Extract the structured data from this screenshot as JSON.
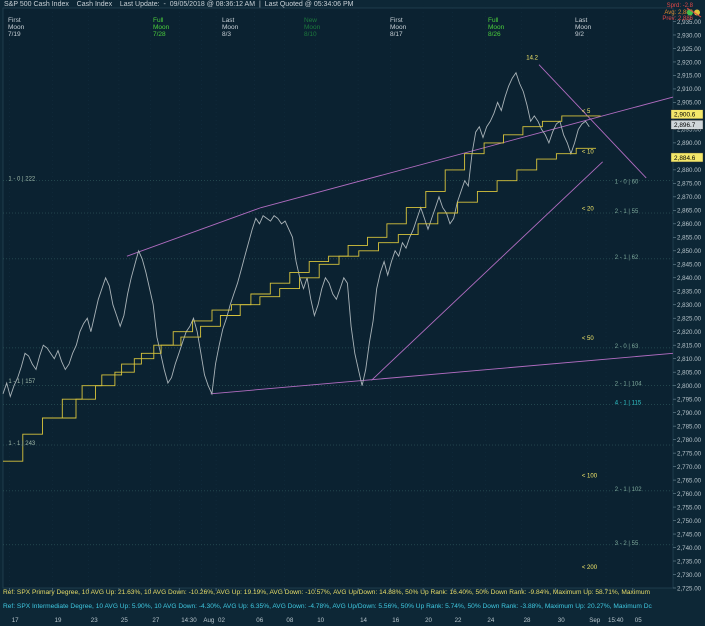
{
  "header": {
    "title": "S&P 500 Cash Index",
    "subtitle": "Cash Index",
    "last_update_label": "Last Update:",
    "last_update": "09/05/2018 @ 08:36:12 AM",
    "last_quoted_label": "Last Quoted @ 05:34:06 PM"
  },
  "moon_phases": [
    {
      "phase": "First",
      "moon": "Moon",
      "date": "7/19",
      "color": "#c8d0d6"
    },
    {
      "phase": "Full",
      "moon": "Moon",
      "date": "7/28",
      "color": "#4ccf3c"
    },
    {
      "phase": "Last",
      "moon": "Moon",
      "date": "8/3",
      "color": "#c8d0d6"
    },
    {
      "phase": "New",
      "moon": "Moon",
      "date": "8/10",
      "color": "#1c7a3c"
    },
    {
      "phase": "First",
      "moon": "Moon",
      "date": "8/17",
      "color": "#c8d0d6"
    },
    {
      "phase": "Full",
      "moon": "Moon",
      "date": "8/26",
      "color": "#4ccf3c"
    },
    {
      "phase": "Last",
      "moon": "Moon",
      "date": "9/2",
      "color": "#c8d0d6"
    }
  ],
  "top_right": {
    "line1": "Sprd: -2.8",
    "line2": "Avg: 2,889",
    "line3": "Prev: 2,886"
  },
  "footer": {
    "line1": "Ref: SPX Primary Degree, 10 AVG Up: 21.63%, 10 AVG Down: -10.26%, AVG Up: 19.19%, AVG Down: -10.57%, AVG Up/Down: 14.88%, 50%  Up Rank: 16.40%, 50% Down Rank: -9.84%, Maximum Up: 58.71%, Maximum",
    "line2": "Ref: SPX Intermediate Degree, 10 AVG Up: 5.90%, 10 AVG Down: -4.30%, AVG Up: 6.35%, AVG Down: -4.78%, AVG Up/Down: 5.56%, 50%  Up Rank: 5.74%, 50% Down Rank: -3.88%, Maximum Up: 20.27%, Maximum Dc"
  },
  "chart_data": {
    "type": "line",
    "ylim": [
      2725,
      2940
    ],
    "yticks": [
      "2,935.00",
      "2,930.00",
      "2,925.00",
      "2,920.00",
      "2,915.00",
      "2,910.00",
      "2,905.00",
      "2,900.00",
      "2,895.00",
      "2,890.00",
      "2,885.00",
      "2,880.00",
      "2,875.00",
      "2,870.00",
      "2,865.00",
      "2,860.00",
      "2,855.00",
      "2,850.00",
      "2,845.00",
      "2,840.00",
      "2,835.00",
      "2,830.00",
      "2,825.00",
      "2,820.00",
      "2,815.00",
      "2,810.00",
      "2,805.00",
      "2,800.00",
      "2,795.00",
      "2,790.00",
      "2,785.00",
      "2,780.00",
      "2,775.00",
      "2,770.00",
      "2,765.00",
      "2,760.00",
      "2,755.00",
      "2,750.00",
      "2,745.00",
      "2,740.00",
      "2,735.00",
      "2,730.00",
      "2,725.00"
    ],
    "xticks": [
      "17",
      "19",
      "23",
      "25",
      "27",
      "14:30",
      "Aug",
      "02",
      "06",
      "08",
      "10",
      "14",
      "16",
      "20",
      "22",
      "24",
      "28",
      "30",
      "Sep",
      "15:40",
      "05"
    ],
    "price_tags": [
      {
        "value": "2,900.6",
        "y": 2900.6,
        "bg": "#f4e86a",
        "fg": "#000000"
      },
      {
        "value": "2,896.7",
        "y": 2896.7,
        "bg": "#cfd6da",
        "fg": "#000000"
      },
      {
        "value": "2,884.6",
        "y": 2884.6,
        "bg": "#f4e86a",
        "fg": "#000000"
      }
    ],
    "price_series": [
      2797,
      2801,
      2796,
      2800,
      2803,
      2807,
      2812,
      2811,
      2808,
      2806,
      2811,
      2815,
      2814,
      2812,
      2810,
      2813,
      2809,
      2806,
      2808,
      2812,
      2815,
      2820,
      2823,
      2825,
      2820,
      2826,
      2832,
      2836,
      2840,
      2837,
      2830,
      2826,
      2822,
      2826,
      2834,
      2840,
      2845,
      2850,
      2847,
      2842,
      2836,
      2830,
      2818,
      2812,
      2806,
      2801,
      2803,
      2808,
      2812,
      2816,
      2820,
      2822,
      2825,
      2820,
      2812,
      2804,
      2800,
      2797,
      2808,
      2815,
      2821,
      2825,
      2830,
      2834,
      2838,
      2843,
      2848,
      2853,
      2858,
      2862,
      2860,
      2863,
      2862,
      2861,
      2863,
      2862,
      2860,
      2861,
      2858,
      2855,
      2846,
      2840,
      2836,
      2840,
      2832,
      2826,
      2830,
      2836,
      2840,
      2838,
      2834,
      2832,
      2836,
      2840,
      2838,
      2822,
      2812,
      2806,
      2800,
      2806,
      2816,
      2824,
      2836,
      2842,
      2846,
      2841,
      2846,
      2850,
      2848,
      2853,
      2851,
      2855,
      2858,
      2862,
      2866,
      2862,
      2858,
      2862,
      2866,
      2870,
      2866,
      2864,
      2860,
      2862,
      2868,
      2872,
      2876,
      2874,
      2886,
      2894,
      2896,
      2892,
      2896,
      2898,
      2901,
      2905,
      2902,
      2907,
      2911,
      2914,
      2916,
      2912,
      2909,
      2904,
      2898,
      2900,
      2898,
      2895,
      2893,
      2890,
      2894,
      2897,
      2898,
      2893,
      2890,
      2886,
      2890,
      2895,
      2897,
      2898,
      2896
    ],
    "annotations": [
      {
        "text": "14.2",
        "x": 0.781,
        "y": 2921,
        "color": "#f4e86a"
      },
      {
        "text": "< 5",
        "x": 0.864,
        "y": 2901,
        "color": "#f4e86a"
      },
      {
        "text": "< 10",
        "x": 0.864,
        "y": 2886,
        "color": "#f4e86a"
      },
      {
        "text": "< 20",
        "x": 0.864,
        "y": 2865,
        "color": "#f4e86a"
      },
      {
        "text": "< 50",
        "x": 0.864,
        "y": 2817,
        "color": "#f4e86a"
      },
      {
        "text": "< 100",
        "x": 0.864,
        "y": 2766,
        "color": "#f4e86a"
      },
      {
        "text": "< 200",
        "x": 0.864,
        "y": 2732,
        "color": "#f4e86a"
      },
      {
        "text": "1 - 0 | 60",
        "x": 0.913,
        "y": 2875,
        "color": "#7da89a"
      },
      {
        "text": "2 - 1 | 55",
        "x": 0.913,
        "y": 2864,
        "color": "#7da89a"
      },
      {
        "text": "2 - 1 | 62",
        "x": 0.913,
        "y": 2847,
        "color": "#7da89a"
      },
      {
        "text": "2 - 0 | 63",
        "x": 0.913,
        "y": 2814,
        "color": "#7da89a"
      },
      {
        "text": "2 - 1 | 104",
        "x": 0.913,
        "y": 2800,
        "color": "#7da89a"
      },
      {
        "text": "4 - 1 | 115",
        "x": 0.913,
        "y": 2793,
        "color": "#2ec4c9"
      },
      {
        "text": "2 - 1 | 102",
        "x": 0.913,
        "y": 2761,
        "color": "#7da89a"
      },
      {
        "text": "3 - 2 | 55",
        "x": 0.913,
        "y": 2741,
        "color": "#7da89a"
      },
      {
        "text": "1 - 0 | 222",
        "x": 0.008,
        "y": 2876,
        "color": "#9fb8a8"
      },
      {
        "text": "1 - 1 | 243",
        "x": 0.008,
        "y": 2778,
        "color": "#9fb8a8"
      },
      {
        "text": "1 - 1 | 157",
        "x": 0.008,
        "y": 2801,
        "color": "#9fb8a8"
      }
    ]
  }
}
